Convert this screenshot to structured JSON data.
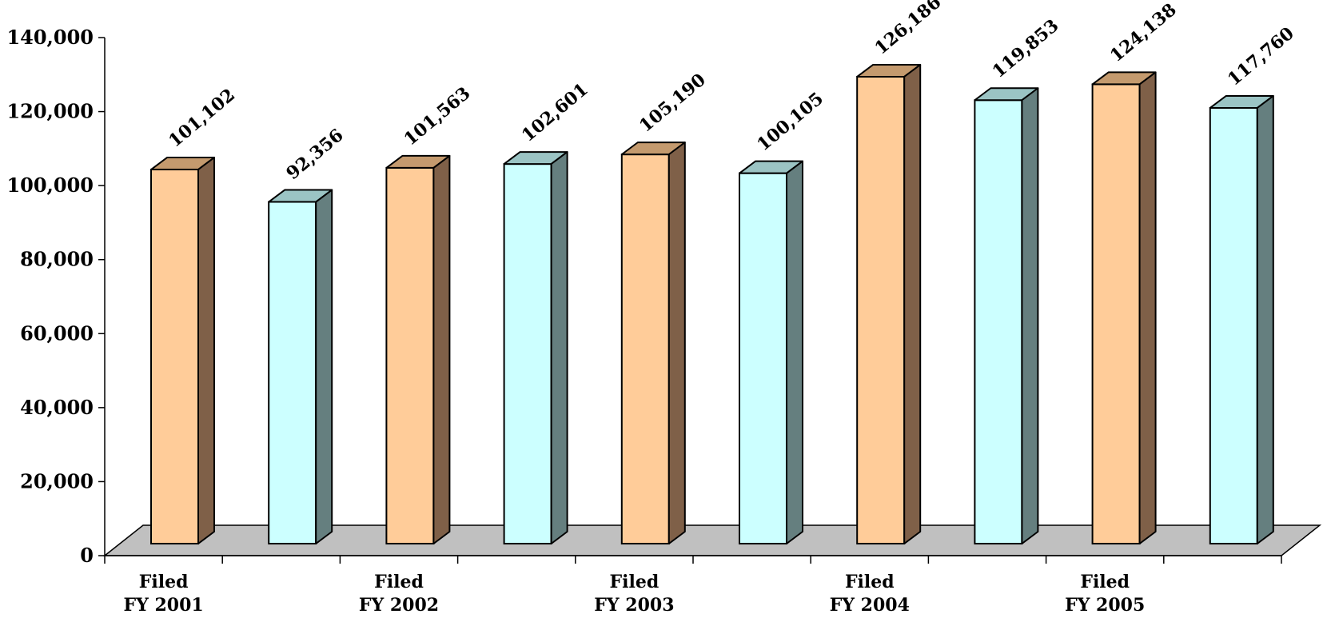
{
  "chart_data": {
    "type": "bar",
    "title": "",
    "xlabel": "",
    "ylabel": "",
    "ylim": [
      0,
      140000
    ],
    "yticks": [
      0,
      20000,
      40000,
      60000,
      80000,
      100000,
      120000,
      140000
    ],
    "ytick_labels": [
      "0",
      "20,000",
      "40,000",
      "60,000",
      "80,000",
      "100,000",
      "120,000",
      "140,000"
    ],
    "grid": false,
    "legend": "none",
    "category_groups": [
      {
        "line1": "Filed",
        "line2": "FY 2001"
      },
      {
        "line1": "Filed",
        "line2": "FY 2002"
      },
      {
        "line1": "Filed",
        "line2": "FY 2003"
      },
      {
        "line1": "Filed",
        "line2": "FY 2004"
      },
      {
        "line1": "Filed",
        "line2": "FY 2005"
      }
    ],
    "bars": [
      {
        "value": 101102,
        "label": "101,102",
        "color": "orange"
      },
      {
        "value": 92356,
        "label": "92,356",
        "color": "cyan"
      },
      {
        "value": 101563,
        "label": "101,563",
        "color": "orange"
      },
      {
        "value": 102601,
        "label": "102,601",
        "color": "cyan"
      },
      {
        "value": 105190,
        "label": "105,190",
        "color": "orange"
      },
      {
        "value": 100105,
        "label": "100,105",
        "color": "cyan"
      },
      {
        "value": 126186,
        "label": "126,186",
        "color": "orange"
      },
      {
        "value": 119853,
        "label": "119,853",
        "color": "cyan"
      },
      {
        "value": 124138,
        "label": "124,138",
        "color": "orange"
      },
      {
        "value": 117760,
        "label": "117,760",
        "color": "cyan"
      }
    ],
    "colors": {
      "orange": {
        "front": "#FFCC99",
        "top": "#C49A6E",
        "side": "#7F6048"
      },
      "cyan": {
        "front": "#CCFFFF",
        "top": "#9BC4C4",
        "side": "#657F7F"
      },
      "floor": "#C0C0C0",
      "outline": "#000000"
    }
  }
}
